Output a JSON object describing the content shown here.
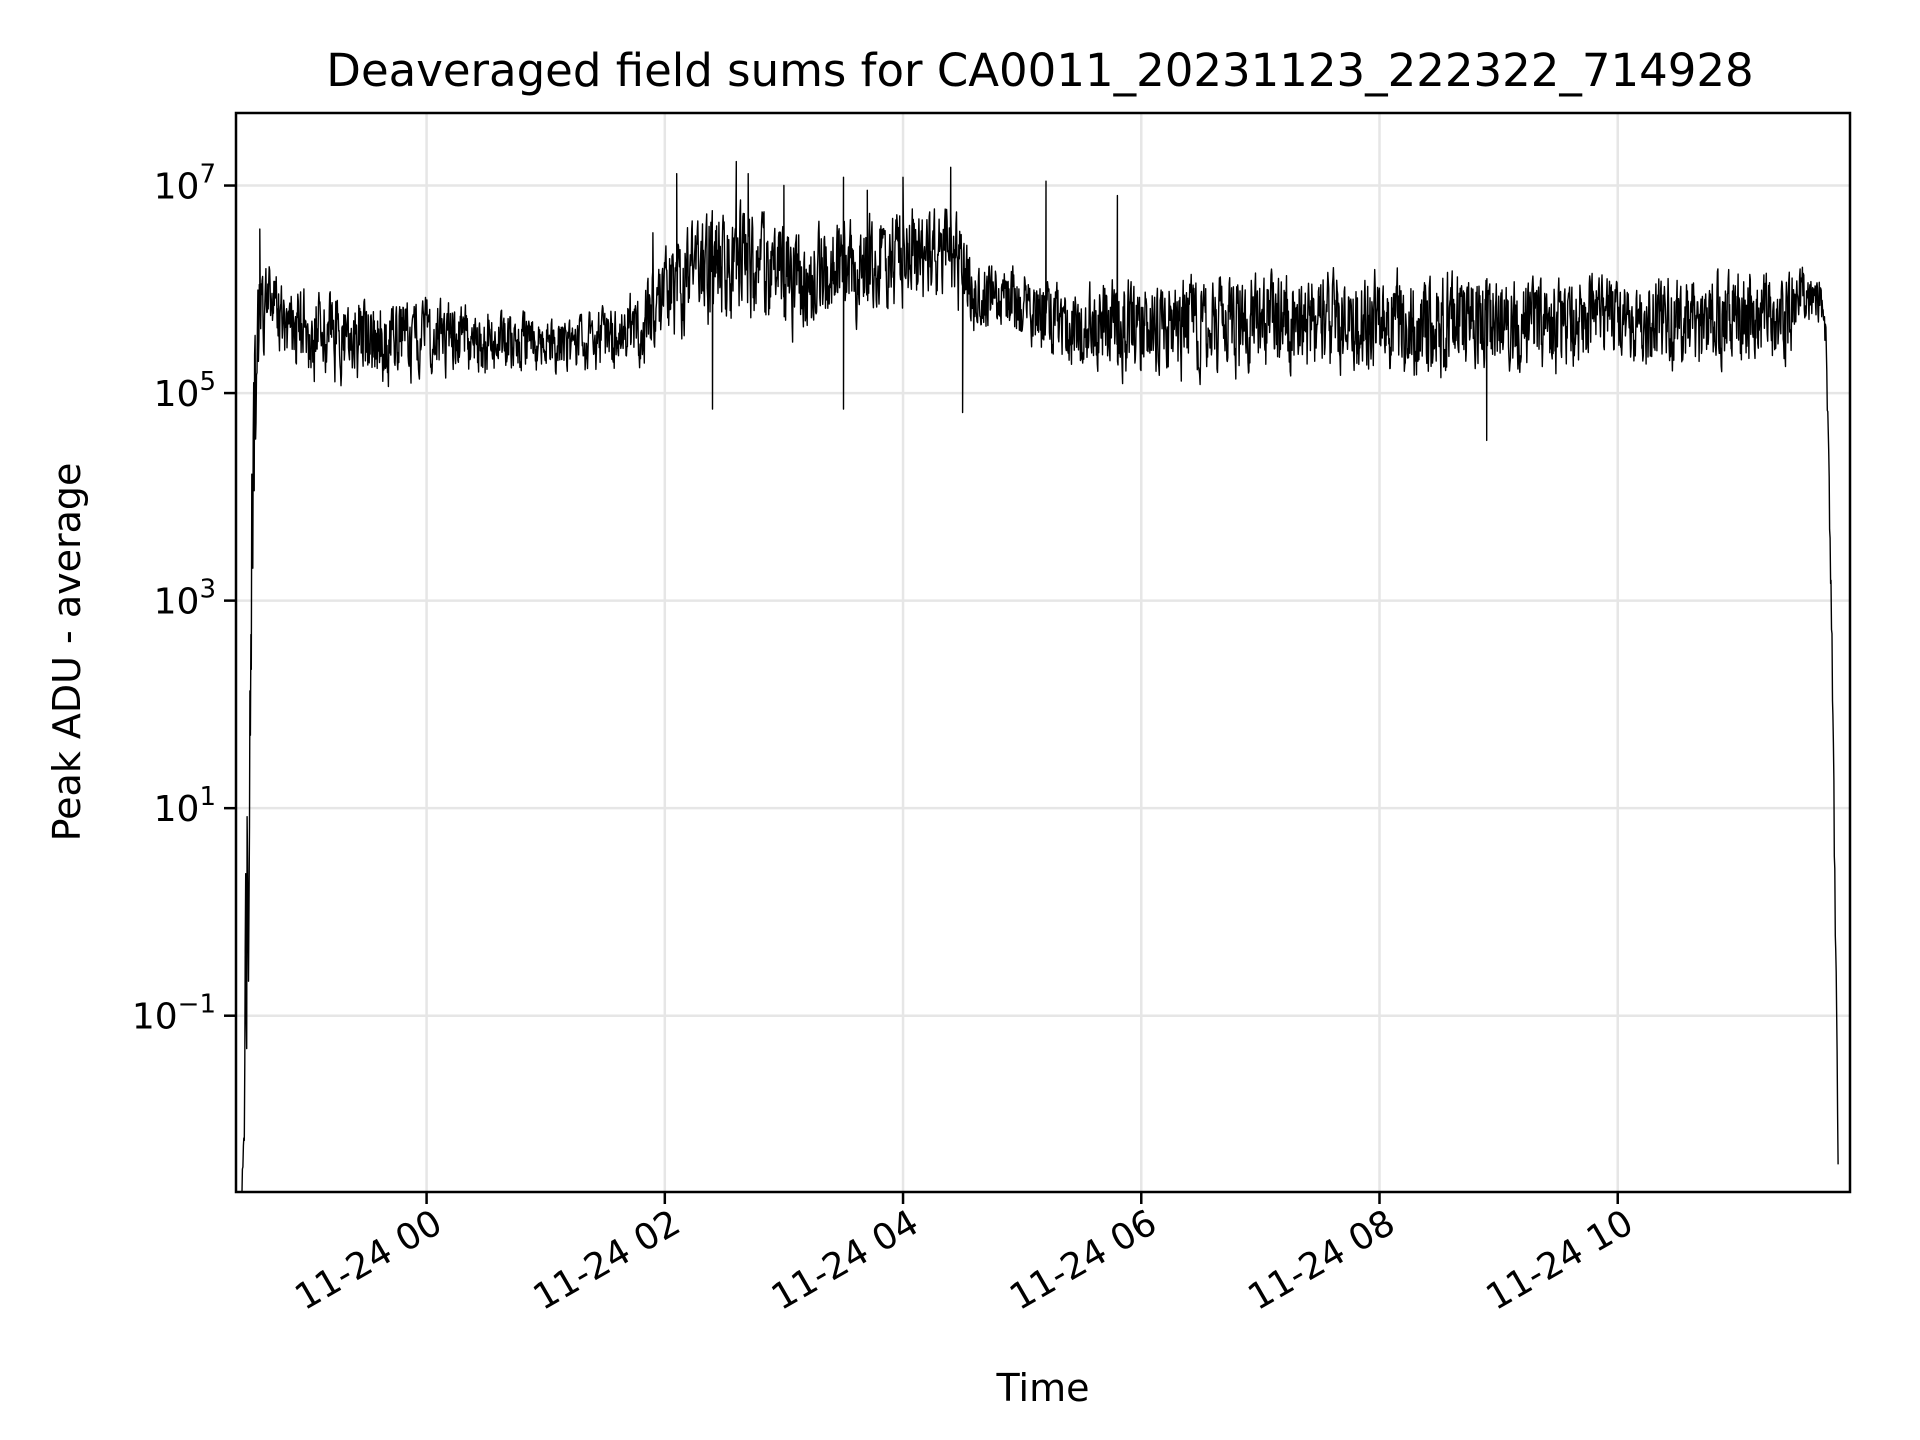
{
  "chart_data": {
    "type": "line",
    "title": "Deaveraged field sums for CA0011_20231123_222322_714928",
    "xlabel": "Time",
    "ylabel": "Peak ADU - average",
    "yscale": "log",
    "grid": true,
    "x_range": [
      "2023-11-23 22:23",
      "2023-11-24 11:55"
    ],
    "xlim_hours_since_2023-11-24": [
      -1.6,
      11.95
    ],
    "ylim": [
      0.002,
      50000000
    ],
    "x_ticks": [
      {
        "hour": 0,
        "label": "11-24 00"
      },
      {
        "hour": 2,
        "label": "11-24 02"
      },
      {
        "hour": 4,
        "label": "11-24 04"
      },
      {
        "hour": 6,
        "label": "11-24 06"
      },
      {
        "hour": 8,
        "label": "11-24 08"
      },
      {
        "hour": 10,
        "label": "11-24 10"
      }
    ],
    "y_ticks": [
      {
        "exp": 7,
        "base": "10",
        "sup": "7"
      },
      {
        "exp": 5,
        "base": "10",
        "sup": "5"
      },
      {
        "exp": 3,
        "base": "10",
        "sup": "3"
      },
      {
        "exp": 1,
        "base": "10",
        "sup": "1"
      },
      {
        "exp": -1,
        "base": "10",
        "sup": "−1"
      }
    ],
    "series": [
      {
        "color": "#000000",
        "envelope_hours": [
          -1.55,
          -1.5,
          -1.45,
          -1.4,
          -1.2,
          -1.0,
          -0.8,
          -0.6,
          -0.4,
          -0.2,
          0.0,
          0.2,
          0.4,
          0.6,
          0.8,
          1.0,
          1.2,
          1.4,
          1.6,
          1.8,
          2.0,
          2.2,
          2.4,
          2.6,
          2.8,
          3.0,
          3.2,
          3.4,
          3.6,
          3.8,
          4.0,
          4.2,
          4.4,
          4.6,
          4.8,
          5.0,
          5.2,
          5.4,
          5.6,
          5.8,
          6.0,
          6.2,
          6.4,
          6.6,
          6.8,
          7.0,
          7.2,
          7.4,
          7.6,
          7.8,
          8.0,
          8.2,
          8.4,
          8.6,
          8.8,
          9.0,
          9.2,
          9.4,
          9.6,
          9.8,
          10.0,
          10.2,
          10.4,
          10.6,
          10.8,
          11.0,
          11.2,
          11.4,
          11.6,
          11.7,
          11.75,
          11.8,
          11.85
        ],
        "envelope_low": [
          0.002,
          0.002,
          300,
          200000,
          100000,
          90000,
          85000,
          90000,
          80000,
          90000,
          100000,
          110000,
          100000,
          110000,
          120000,
          120000,
          110000,
          110000,
          120000,
          130000,
          200000,
          220000,
          280000,
          300000,
          250000,
          250000,
          200000,
          250000,
          300000,
          350000,
          400000,
          450000,
          500000,
          250000,
          350000,
          200000,
          150000,
          130000,
          110000,
          100000,
          90000,
          90000,
          90000,
          90000,
          90000,
          95000,
          95000,
          95000,
          90000,
          90000,
          90000,
          85000,
          80000,
          90000,
          95000,
          100000,
          100000,
          100000,
          100000,
          100000,
          110000,
          110000,
          100000,
          100000,
          100000,
          100000,
          100000,
          110000,
          400000,
          300000,
          200000,
          100,
          0.002
        ],
        "envelope_high": [
          0.002,
          600,
          2000000,
          3000000,
          1500000,
          1300000,
          1200000,
          1100000,
          1000000,
          1000000,
          1000000,
          900000,
          800000,
          750000,
          700000,
          600000,
          600000,
          700000,
          900000,
          1500000,
          3000000,
          6000000,
          8000000,
          9000000,
          7000000,
          6000000,
          5000000,
          5500000,
          6000000,
          8000000,
          9000000,
          8000000,
          9500000,
          2500000,
          2000000,
          2000000,
          1500000,
          1400000,
          1500000,
          1700000,
          1600000,
          1600000,
          1700000,
          1800000,
          1800000,
          1800000,
          1900000,
          1900000,
          2000000,
          2000000,
          2100000,
          2100000,
          2000000,
          2000000,
          1900000,
          1800000,
          1800000,
          1700000,
          1700000,
          1700000,
          1600000,
          1700000,
          1700000,
          1800000,
          1900000,
          2000000,
          2000000,
          2000000,
          2000000,
          1500000,
          500000,
          1000,
          0.008
        ],
        "spikes": [
          {
            "hour": -1.4,
            "value": 3800000
          },
          {
            "hour": 1.9,
            "value": 3500000
          },
          {
            "hour": 2.1,
            "value": 13000000
          },
          {
            "hour": 2.6,
            "value": 17000000
          },
          {
            "hour": 2.7,
            "value": 13000000
          },
          {
            "hour": 3.0,
            "value": 10000000
          },
          {
            "hour": 3.5,
            "value": 12000000
          },
          {
            "hour": 3.7,
            "value": 9000000
          },
          {
            "hour": 4.0,
            "value": 12000000
          },
          {
            "hour": 4.4,
            "value": 15000000
          },
          {
            "hour": 5.2,
            "value": 11000000
          },
          {
            "hour": 5.8,
            "value": 8000000
          }
        ],
        "dips": [
          {
            "hour": 2.4,
            "value": 70000
          },
          {
            "hour": 3.5,
            "value": 70000
          },
          {
            "hour": 4.5,
            "value": 65000
          },
          {
            "hour": 8.9,
            "value": 35000
          }
        ]
      }
    ]
  }
}
